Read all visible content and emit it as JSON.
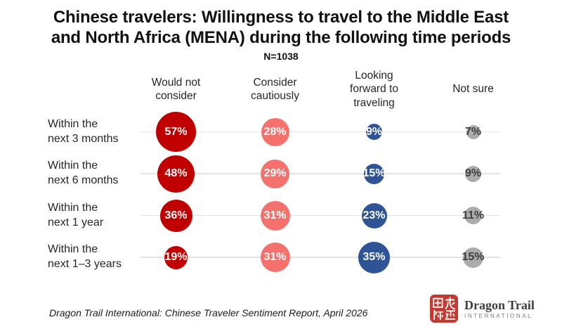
{
  "title": "Chinese travelers: Willingness to travel to the Middle East\nand North Africa (MENA) during the following time periods",
  "n_label": "N=1038",
  "chart": {
    "columns": [
      {
        "label": "Would not\nconsider",
        "bubble_color": "#C00000",
        "text_color": "#FFFFFF"
      },
      {
        "label": "Consider\ncautiously",
        "bubble_color": "#F4716D",
        "text_color": "#FFFFFF"
      },
      {
        "label": "Looking\nforward to\ntraveling",
        "bubble_color": "#2F5496",
        "text_color": "#FFFFFF"
      },
      {
        "label": "Not sure",
        "bubble_color": "#ABABAB",
        "text_color": "#3F3F3F"
      }
    ],
    "rows": [
      {
        "label": "Within the\nnext 3 months",
        "values": [
          57,
          28,
          9,
          7
        ]
      },
      {
        "label": "Within the\nnext 6 months",
        "values": [
          48,
          29,
          15,
          9
        ]
      },
      {
        "label": "Within the\nnext 1 year",
        "values": [
          36,
          31,
          23,
          11
        ]
      },
      {
        "label": "Within the\nnext 1–3 years",
        "values": [
          19,
          31,
          35,
          15
        ]
      }
    ],
    "value_suffix": "%",
    "gridline_color": "#E3E3E3",
    "bubble_scale": 7.6
  },
  "chart_data": {
    "type": "bubble",
    "title": "Chinese travelers: Willingness to travel to the Middle East and North Africa (MENA) during the following time periods",
    "sample_size_label": "N=1038",
    "categories": [
      "Within the next 3 months",
      "Within the next 6 months",
      "Within the next 1 year",
      "Within the next 1–3 years"
    ],
    "series": [
      {
        "name": "Would not consider",
        "values": [
          57,
          48,
          36,
          19
        ],
        "color": "#C00000"
      },
      {
        "name": "Consider cautiously",
        "values": [
          28,
          29,
          31,
          31
        ],
        "color": "#F4716D"
      },
      {
        "name": "Looking forward to traveling",
        "values": [
          9,
          15,
          23,
          35
        ],
        "color": "#2F5496"
      },
      {
        "name": "Not sure",
        "values": [
          7,
          9,
          11,
          15
        ],
        "color": "#ABABAB"
      }
    ],
    "unit": "percent",
    "layout": "matrix: rows are time periods, columns are sentiment categories; bubble size proportional to value; horizontal gridline per row; legend as column headers"
  },
  "footer": {
    "source": "Dragon Trail International: Chinese Traveler Sentiment Report, April 2026"
  },
  "logo": {
    "name": "Dragon Trail",
    "subtitle": "INTERNATIONAL",
    "seal_characters": "国龙际迹",
    "seal_color": "#BF3B33"
  }
}
